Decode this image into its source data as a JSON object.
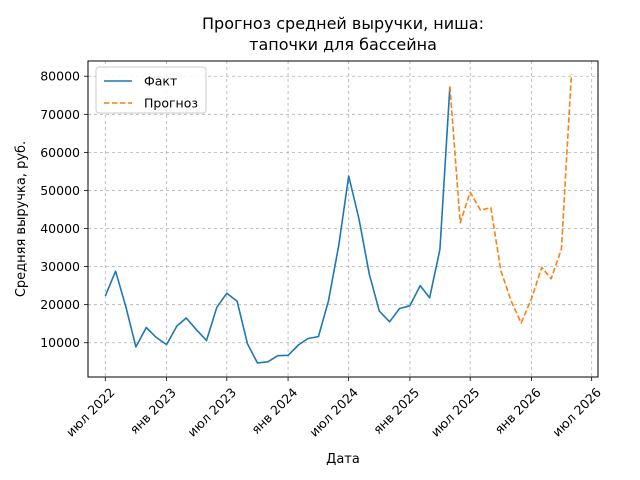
{
  "chart_data": {
    "type": "line",
    "title_lines": [
      "Прогноз средней выручки, ниша:",
      "тапочки для бассейна"
    ],
    "xlabel": "Дата",
    "ylabel": "Средняя выручка, руб.",
    "x_ticks": [
      "2022-07",
      "2023-01",
      "2023-07",
      "2024-01",
      "2024-07",
      "2025-01",
      "2025-07",
      "2026-01",
      "2026-07"
    ],
    "x_tick_labels": [
      "июл 2022",
      "янв 2023",
      "июл 2023",
      "янв 2024",
      "июл 2024",
      "янв 2025",
      "июл 2025",
      "янв 2026",
      "июл 2026"
    ],
    "xlim": [
      "2022-05-10",
      "2026-07-20"
    ],
    "y_ticks": [
      10000,
      20000,
      30000,
      40000,
      50000,
      60000,
      70000,
      80000
    ],
    "ylim": [
      1000,
      84000
    ],
    "grid": true,
    "legend_position": "top-left",
    "series": [
      {
        "name": "Факт",
        "color": "#1f77b4",
        "style": "solid",
        "x": [
          "2022-07",
          "2022-08",
          "2022-09",
          "2022-10",
          "2022-11",
          "2022-12",
          "2023-01",
          "2023-02",
          "2023-03",
          "2023-04",
          "2023-05",
          "2023-06",
          "2023-07",
          "2023-08",
          "2023-09",
          "2023-10",
          "2023-11",
          "2023-12",
          "2024-01",
          "2024-02",
          "2024-03",
          "2024-04",
          "2024-05",
          "2024-06",
          "2024-07",
          "2024-08",
          "2024-09",
          "2024-10",
          "2024-11",
          "2024-12",
          "2025-01",
          "2025-02",
          "2025-03",
          "2025-04",
          "2025-05"
        ],
        "y": [
          22300,
          28800,
          19300,
          8900,
          14000,
          11400,
          9500,
          14400,
          16500,
          13400,
          10600,
          19300,
          23000,
          20900,
          9700,
          4700,
          5000,
          6600,
          6700,
          9400,
          11100,
          11600,
          20900,
          35500,
          53800,
          42500,
          28000,
          18300,
          15500,
          19000,
          19700,
          25000,
          21800,
          34500,
          77300
        ]
      },
      {
        "name": "Прогноз",
        "color": "#ff7f0e",
        "style": "dashed",
        "x": [
          "2025-05",
          "2025-06",
          "2025-07",
          "2025-08",
          "2025-09",
          "2025-10",
          "2025-11",
          "2025-12",
          "2026-01",
          "2026-02",
          "2026-03",
          "2026-04",
          "2026-05"
        ],
        "y": [
          77300,
          41500,
          49500,
          44800,
          45500,
          29000,
          21000,
          15200,
          21500,
          29800,
          26800,
          34600,
          80500
        ]
      }
    ]
  }
}
